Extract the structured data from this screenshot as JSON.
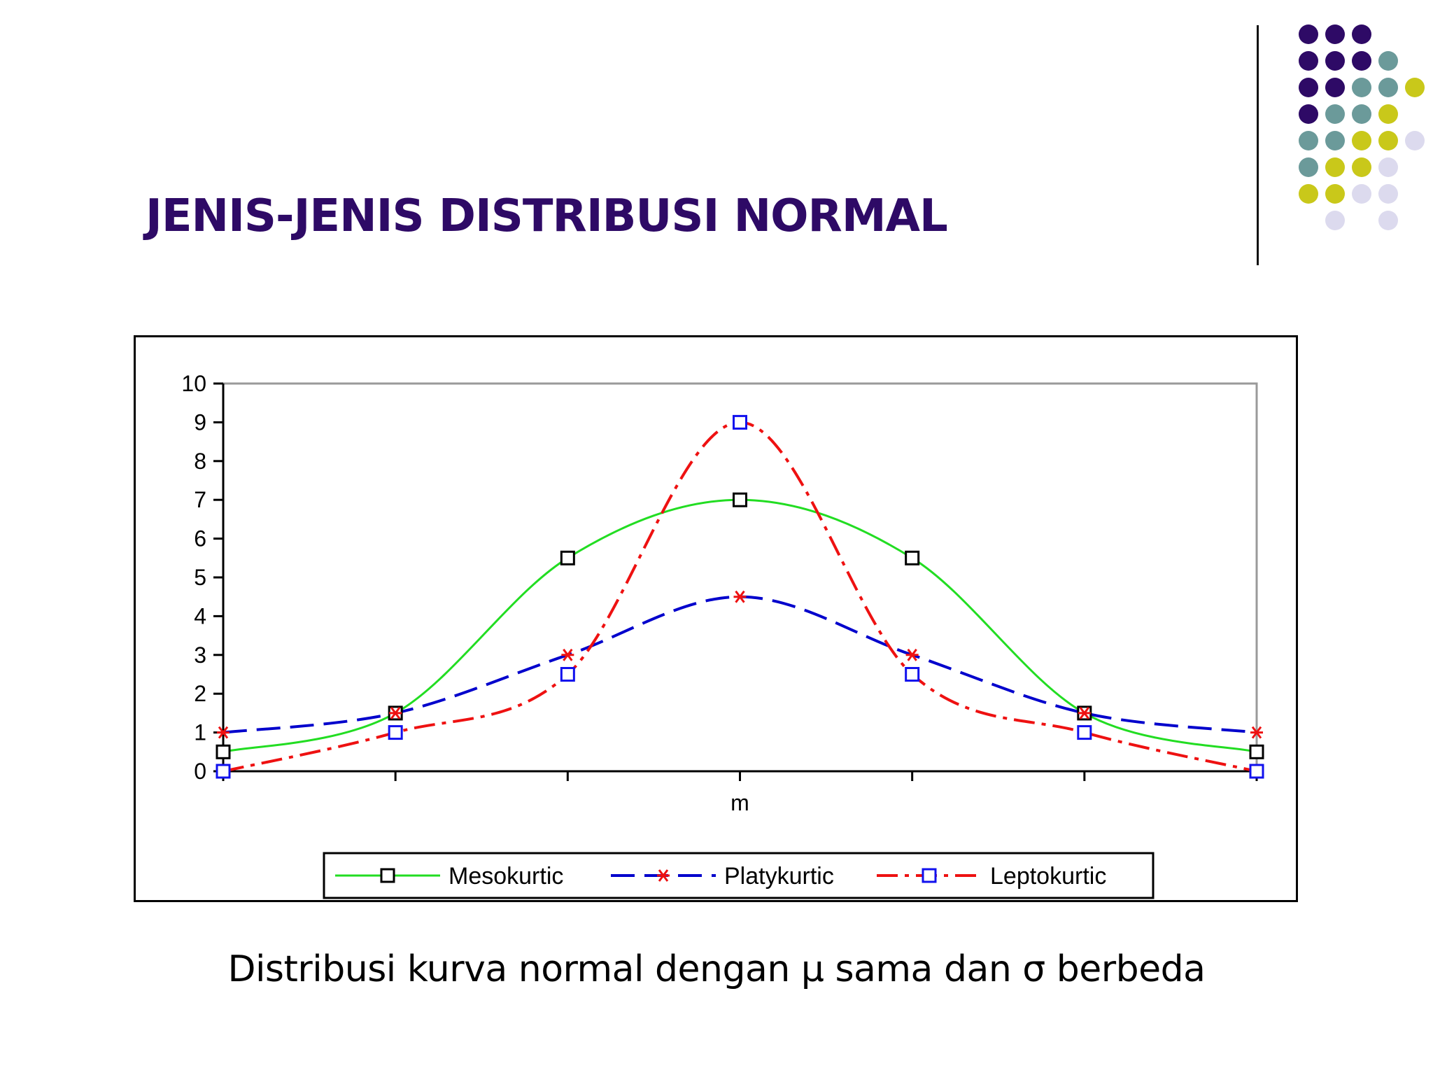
{
  "slide": {
    "title": "JENIS-JENIS DISTRIBUSI NORMAL",
    "caption": "Distribusi kurva normal dengan μ sama dan σ berbeda"
  },
  "decoration": {
    "colors": {
      "purple": "#2e0a66",
      "teal": "#6b9a9a",
      "olive": "#c9c81a",
      "lavender": "#dcdaee"
    },
    "dot_grid": [
      [
        "purple",
        "purple",
        "purple",
        "",
        ""
      ],
      [
        "purple",
        "purple",
        "purple",
        "teal",
        ""
      ],
      [
        "purple",
        "purple",
        "teal",
        "teal",
        "olive"
      ],
      [
        "purple",
        "teal",
        "teal",
        "olive",
        ""
      ],
      [
        "teal",
        "teal",
        "olive",
        "olive",
        "lavender"
      ],
      [
        "teal",
        "olive",
        "olive",
        "lavender",
        ""
      ],
      [
        "olive",
        "olive",
        "lavender",
        "lavender",
        ""
      ],
      [
        "",
        "lavender",
        "",
        "lavender",
        ""
      ]
    ]
  },
  "chart_data": {
    "type": "line",
    "x": [
      -3,
      -2,
      -1,
      0,
      1,
      2,
      3
    ],
    "xlabel": "m",
    "ylim": [
      0,
      10
    ],
    "yticks": [
      "0",
      "1",
      "2",
      "3",
      "4",
      "5",
      "6",
      "7",
      "8",
      "9",
      "10"
    ],
    "grid": false,
    "legend": "bottom",
    "series": [
      {
        "name": "Mesokurtic",
        "color": "#22dd22",
        "marker": "square",
        "marker_color": "#000000",
        "dash": "solid",
        "values": [
          0.5,
          1.5,
          5.5,
          7,
          5.5,
          1.5,
          0.5
        ]
      },
      {
        "name": "Platykurtic",
        "color": "#0000cc",
        "marker": "star",
        "marker_color": "#ee1111",
        "dash": "dashed",
        "values": [
          1,
          1.5,
          3,
          4.5,
          3,
          1.5,
          1
        ]
      },
      {
        "name": "Leptokurtic",
        "color": "#ee1111",
        "marker": "square",
        "marker_color": "#1111ee",
        "dash": "dashdot",
        "values": [
          0,
          1,
          2.5,
          9,
          2.5,
          1,
          0
        ]
      }
    ]
  }
}
